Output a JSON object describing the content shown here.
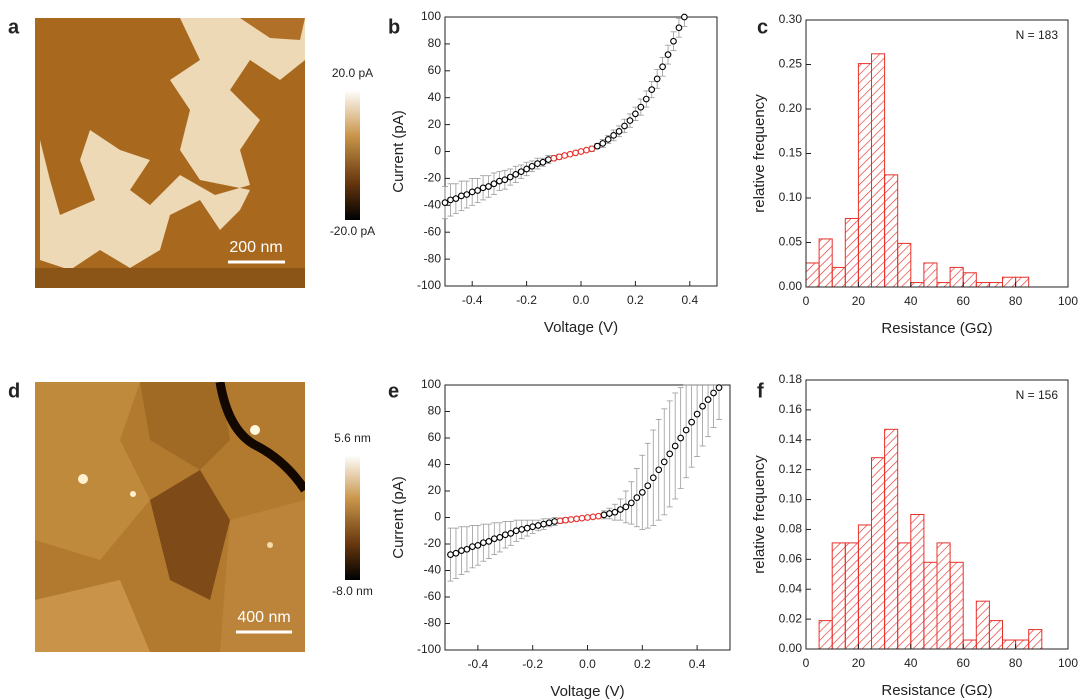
{
  "chart_data": [
    {
      "type": "image",
      "panel": "a",
      "colorbar_labels": [
        "20.0 pA",
        "-20.0 pA"
      ],
      "scale_bar": "200 nm"
    },
    {
      "type": "errorbar",
      "panel": "b",
      "x_label": "Voltage (V)",
      "y_label": "Current (pA)",
      "xlim": [
        -0.5,
        0.5
      ],
      "xticks": [
        -0.4,
        -0.2,
        {
          "value": 0,
          "label": "0.0"
        },
        0.2,
        0.4
      ],
      "ylim": [
        -100,
        100
      ],
      "yticks": [
        -100,
        -80,
        -60,
        -40,
        -20,
        0,
        20,
        40,
        60,
        80,
        100
      ],
      "series": [
        {
          "color": "#000000",
          "x": [
            -0.5,
            -0.48,
            -0.46,
            -0.44,
            -0.42,
            -0.4,
            -0.38,
            -0.36,
            -0.34,
            -0.32,
            -0.3,
            -0.28,
            -0.26,
            -0.24,
            -0.22,
            -0.2,
            -0.18,
            -0.16,
            -0.14,
            -0.12
          ],
          "values": [
            -38,
            -36,
            -35,
            -33,
            -32,
            -30,
            -29,
            -27,
            -26,
            -24,
            -22,
            -21,
            -19,
            -17,
            -15,
            -13,
            -11,
            -9,
            -8,
            -6
          ],
          "errors": [
            12,
            12,
            11,
            11,
            10,
            10,
            9,
            9,
            8,
            8,
            7,
            7,
            6,
            6,
            5,
            5,
            4,
            4,
            3,
            3
          ]
        },
        {
          "color": "#e8302a",
          "x": [
            -0.1,
            -0.08,
            -0.06,
            -0.04,
            -0.02,
            0,
            0.02,
            0.04
          ],
          "values": [
            -5,
            -4,
            -3,
            -2,
            -1,
            0,
            1,
            2
          ],
          "errors": [
            2,
            2,
            1,
            1,
            1,
            1,
            1,
            2
          ]
        },
        {
          "color": "#000000",
          "x": [
            0.06,
            0.08,
            0.1,
            0.12,
            0.14,
            0.16,
            0.18,
            0.2,
            0.22,
            0.24,
            0.26,
            0.28,
            0.3,
            0.32,
            0.34,
            0.36,
            0.38
          ],
          "values": [
            4,
            6,
            9,
            12,
            15,
            19,
            23,
            28,
            33,
            39,
            46,
            54,
            63,
            72,
            82,
            92,
            100
          ],
          "errors": [
            2,
            3,
            3,
            4,
            4,
            5,
            5,
            5,
            6,
            6,
            6,
            7,
            7,
            7,
            7,
            7,
            7
          ]
        }
      ]
    },
    {
      "type": "histogram",
      "panel": "c",
      "x_label": "Resistance (GΩ)",
      "y_label": "relative frequency",
      "annotation": "N  = 183",
      "color": "#e8302a",
      "bins": [
        0,
        5,
        10,
        15,
        20,
        25,
        30,
        35,
        40,
        45,
        50,
        55,
        60,
        65,
        70,
        75,
        80,
        85
      ],
      "values": [
        0.027,
        0.054,
        0.022,
        0.077,
        0.251,
        0.262,
        0.126,
        0.049,
        0.005,
        0.027,
        0.005,
        0.022,
        0.016,
        0.005,
        0.005,
        0.011,
        0.011
      ],
      "xlim": [
        0,
        100
      ],
      "xticks": [
        0,
        20,
        40,
        60,
        80,
        100
      ],
      "ylim": [
        0,
        0.3
      ],
      "yticks": [
        {
          "value": 0,
          "label": "0.00"
        },
        0.05,
        {
          "value": 0.1,
          "label": "0.10"
        },
        0.15,
        {
          "value": 0.2,
          "label": "0.20"
        },
        0.25,
        {
          "value": 0.3,
          "label": "0.30"
        }
      ]
    },
    {
      "type": "image",
      "panel": "d",
      "colorbar_labels": [
        "5.6 nm",
        "-8.0 nm"
      ],
      "scale_bar": "400 nm"
    },
    {
      "type": "errorbar",
      "panel": "e",
      "x_label": "Voltage (V)",
      "y_label": "Current (pA)",
      "xlim": [
        -0.52,
        0.52
      ],
      "xticks": [
        -0.4,
        -0.2,
        {
          "value": 0,
          "label": "0.0"
        },
        0.2,
        0.4
      ],
      "ylim": [
        -100,
        100
      ],
      "yticks": [
        -100,
        -80,
        -60,
        -40,
        -20,
        0,
        20,
        40,
        60,
        80,
        100
      ],
      "series": [
        {
          "color": "#000000",
          "x": [
            -0.5,
            -0.48,
            -0.46,
            -0.44,
            -0.42,
            -0.4,
            -0.38,
            -0.36,
            -0.34,
            -0.32,
            -0.3,
            -0.28,
            -0.26,
            -0.24,
            -0.22,
            -0.2,
            -0.18,
            -0.16,
            -0.14,
            -0.12
          ],
          "values": [
            -28,
            -27,
            -25,
            -24,
            -22,
            -21,
            -19,
            -18,
            -16,
            -15,
            -13,
            -12,
            -10,
            -9,
            -8,
            -7,
            -6,
            -5,
            -4,
            -3
          ],
          "errors": [
            20,
            19,
            18,
            17,
            16,
            15,
            14,
            13,
            12,
            11,
            10,
            9,
            8,
            7,
            6,
            5,
            4,
            4,
            3,
            3
          ]
        },
        {
          "color": "#e8302a",
          "x": [
            -0.1,
            -0.08,
            -0.06,
            -0.04,
            -0.02,
            0,
            0.02,
            0.04
          ],
          "values": [
            -2.5,
            -2,
            -1.5,
            -1,
            -0.5,
            0,
            0.5,
            1
          ],
          "errors": [
            2,
            2,
            1,
            1,
            1,
            1,
            1,
            1
          ]
        },
        {
          "color": "#000000",
          "x": [
            0.06,
            0.08,
            0.1,
            0.12,
            0.14,
            0.16,
            0.18,
            0.2,
            0.22,
            0.24,
            0.26,
            0.28,
            0.3,
            0.32,
            0.34,
            0.36,
            0.38,
            0.4,
            0.42,
            0.44,
            0.46,
            0.48
          ],
          "values": [
            2,
            3,
            4,
            6,
            8,
            11,
            15,
            19,
            24,
            30,
            36,
            42,
            48,
            54,
            60,
            66,
            72,
            78,
            84,
            89,
            94,
            98
          ],
          "errors": [
            3,
            4,
            6,
            8,
            12,
            16,
            22,
            28,
            32,
            36,
            38,
            40,
            40,
            40,
            38,
            36,
            34,
            32,
            30,
            28,
            26,
            24
          ]
        }
      ]
    },
    {
      "type": "histogram",
      "panel": "f",
      "x_label": "Resistance (GΩ)",
      "y_label": "relative frequency",
      "annotation": "N = 156",
      "color": "#e8302a",
      "bins": [
        5,
        10,
        15,
        20,
        25,
        30,
        35,
        40,
        45,
        50,
        55,
        60,
        65,
        70,
        75,
        80,
        85,
        90
      ],
      "values": [
        0.019,
        0.071,
        0.071,
        0.083,
        0.128,
        0.147,
        0.071,
        0.09,
        0.058,
        0.071,
        0.058,
        0.006,
        0.032,
        0.019,
        0.006,
        0.006,
        0.013
      ],
      "xlim": [
        0,
        100
      ],
      "xticks": [
        0,
        20,
        40,
        60,
        80,
        100
      ],
      "ylim": [
        0,
        0.18
      ],
      "yticks": [
        {
          "value": 0,
          "label": "0.00"
        },
        {
          "value": 0.02,
          "label": "0.02"
        },
        {
          "value": 0.04,
          "label": "0.04"
        },
        {
          "value": 0.06,
          "label": "0.06"
        },
        {
          "value": 0.08,
          "label": "0.08"
        },
        {
          "value": 0.1,
          "label": "0.10"
        },
        {
          "value": 0.12,
          "label": "0.12"
        },
        {
          "value": 0.14,
          "label": "0.14"
        },
        {
          "value": 0.16,
          "label": "0.16"
        },
        {
          "value": 0.18,
          "label": "0.18"
        }
      ]
    }
  ]
}
